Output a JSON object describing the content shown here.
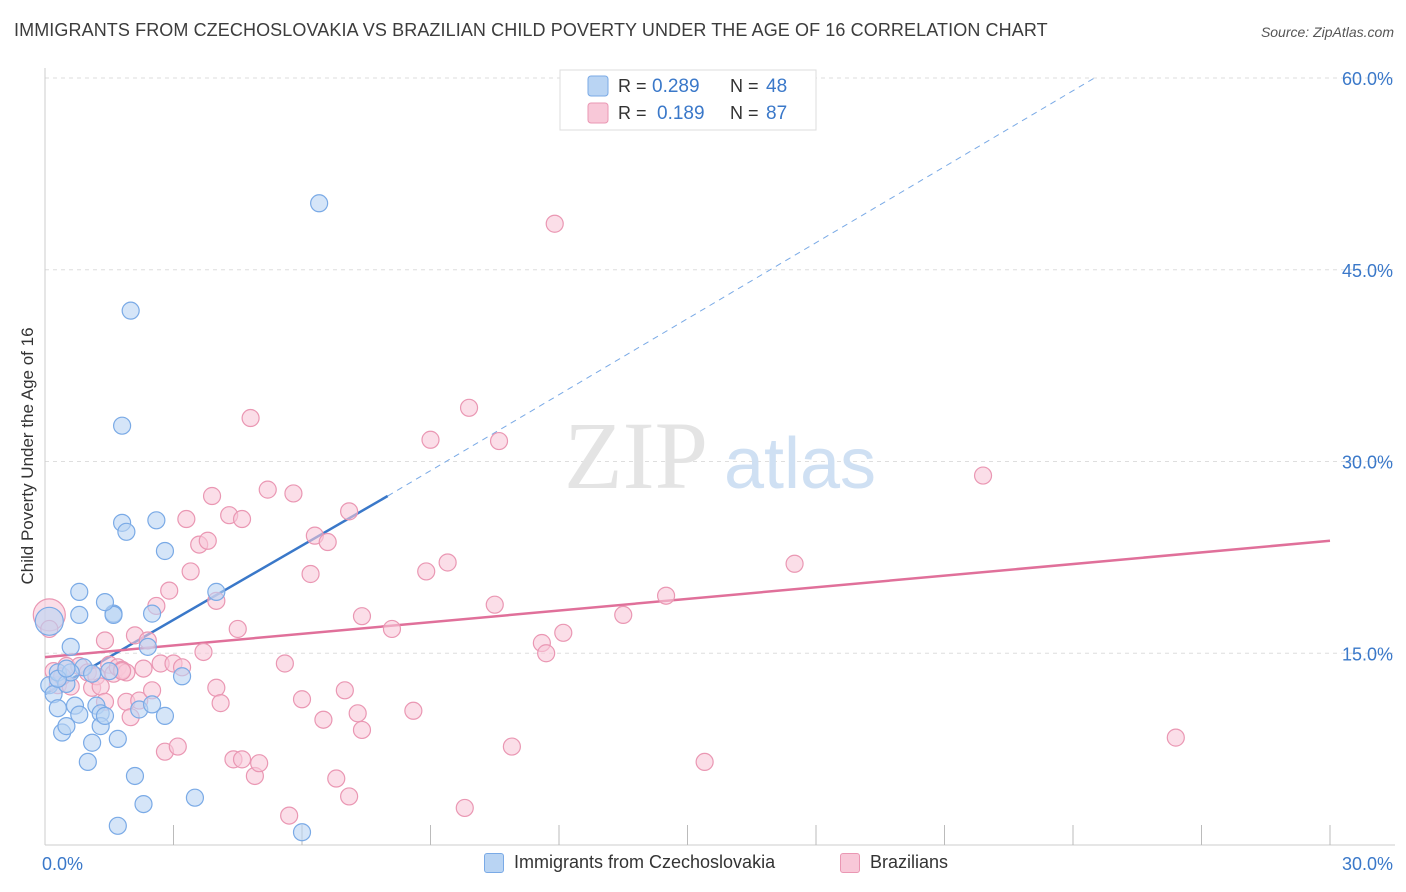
{
  "chart_data": {
    "type": "scatter",
    "title": "IMMIGRANTS FROM CZECHOSLOVAKIA VS BRAZILIAN CHILD POVERTY UNDER THE AGE OF 16 CORRELATION CHART",
    "source": "Source: ZipAtlas.com",
    "ylabel": "Child Poverty Under the Age of 16",
    "xlabel": "",
    "xlim": [
      0,
      30
    ],
    "ylim": [
      0,
      60
    ],
    "x_tick_labels": [
      "0.0%",
      "30.0%"
    ],
    "y_ticks": [
      15,
      30,
      45,
      60
    ],
    "y_tick_labels": [
      "15.0%",
      "30.0%",
      "45.0%",
      "60.0%"
    ],
    "watermark": {
      "zip": "ZIP",
      "atlas": "atlas"
    },
    "legend": {
      "series1": {
        "r_label": "R =",
        "r_value": "0.289",
        "n_label": "N =",
        "n_value": "48"
      },
      "series2": {
        "r_label": "R =",
        "r_value": "0.189",
        "n_label": "N =",
        "n_value": "87"
      }
    },
    "colors": {
      "blue_fill": "#b9d4f3",
      "blue_stroke": "#7aaae6",
      "blue_line": "#3a78c9",
      "pink_fill": "#f8c8d8",
      "pink_stroke": "#ea97b3",
      "pink_line": "#e0709a",
      "value_text": "#3a78c9"
    },
    "series": [
      {
        "name": "Immigrants from Czechoslovakia",
        "color": "#b9d4f3",
        "trend": {
          "x": [
            0.0,
            8.0
          ],
          "y": [
            11.8,
            27.3
          ],
          "dashed_to": [
            24.5,
            60.0
          ]
        },
        "points": [
          [
            0.1,
            17.5
          ],
          [
            0.1,
            12.5
          ],
          [
            0.2,
            11.8
          ],
          [
            0.3,
            10.7
          ],
          [
            0.4,
            8.8
          ],
          [
            0.5,
            9.3
          ],
          [
            0.3,
            13.5
          ],
          [
            0.5,
            12.6
          ],
          [
            0.6,
            15.5
          ],
          [
            0.7,
            10.9
          ],
          [
            0.8,
            10.2
          ],
          [
            0.8,
            18.0
          ],
          [
            0.9,
            13.9
          ],
          [
            1.0,
            6.5
          ],
          [
            1.1,
            8.0
          ],
          [
            1.2,
            10.9
          ],
          [
            1.3,
            10.3
          ],
          [
            1.3,
            9.3
          ],
          [
            1.4,
            10.1
          ],
          [
            1.5,
            13.6
          ],
          [
            1.6,
            18.1
          ],
          [
            1.6,
            18.0
          ],
          [
            1.7,
            8.3
          ],
          [
            1.7,
            1.5
          ],
          [
            1.4,
            19.0
          ],
          [
            1.8,
            32.8
          ],
          [
            1.8,
            25.2
          ],
          [
            1.9,
            24.5
          ],
          [
            2.0,
            41.8
          ],
          [
            2.1,
            5.4
          ],
          [
            2.2,
            10.6
          ],
          [
            2.3,
            3.2
          ],
          [
            2.4,
            15.5
          ],
          [
            2.5,
            18.1
          ],
          [
            2.6,
            25.4
          ],
          [
            2.5,
            11.0
          ],
          [
            2.8,
            23.0
          ],
          [
            2.8,
            10.1
          ],
          [
            3.2,
            13.2
          ],
          [
            3.5,
            3.7
          ],
          [
            4.0,
            19.8
          ],
          [
            6.0,
            1.0
          ],
          [
            6.4,
            50.2
          ],
          [
            0.8,
            19.8
          ],
          [
            0.6,
            13.5
          ],
          [
            1.1,
            13.4
          ],
          [
            0.3,
            13.0
          ],
          [
            0.5,
            13.8
          ]
        ]
      },
      {
        "name": "Brazilians",
        "color": "#f8c8d8",
        "trend": {
          "x": [
            0.0,
            30.0
          ],
          "y": [
            14.7,
            23.8
          ]
        },
        "points": [
          [
            0.1,
            18.0
          ],
          [
            0.2,
            13.6
          ],
          [
            0.3,
            12.5
          ],
          [
            0.5,
            14.0
          ],
          [
            0.6,
            12.4
          ],
          [
            0.8,
            14.0
          ],
          [
            1.0,
            13.5
          ],
          [
            1.1,
            12.3
          ],
          [
            1.2,
            13.2
          ],
          [
            1.3,
            12.4
          ],
          [
            1.4,
            11.2
          ],
          [
            1.4,
            16.0
          ],
          [
            1.5,
            14.1
          ],
          [
            1.6,
            13.4
          ],
          [
            1.7,
            13.9
          ],
          [
            1.8,
            13.7
          ],
          [
            1.9,
            13.5
          ],
          [
            1.9,
            11.2
          ],
          [
            2.0,
            10.0
          ],
          [
            2.1,
            16.4
          ],
          [
            2.2,
            11.3
          ],
          [
            2.3,
            13.8
          ],
          [
            2.4,
            16.0
          ],
          [
            2.5,
            12.1
          ],
          [
            2.6,
            18.7
          ],
          [
            2.7,
            14.2
          ],
          [
            2.8,
            7.3
          ],
          [
            2.9,
            19.9
          ],
          [
            3.0,
            14.2
          ],
          [
            3.1,
            7.7
          ],
          [
            3.2,
            13.9
          ],
          [
            3.3,
            25.5
          ],
          [
            3.4,
            21.4
          ],
          [
            3.6,
            23.5
          ],
          [
            3.7,
            15.1
          ],
          [
            3.8,
            23.8
          ],
          [
            3.9,
            27.3
          ],
          [
            4.0,
            19.1
          ],
          [
            4.0,
            12.3
          ],
          [
            4.1,
            11.1
          ],
          [
            4.3,
            25.8
          ],
          [
            4.4,
            6.7
          ],
          [
            4.5,
            16.9
          ],
          [
            4.6,
            6.7
          ],
          [
            4.6,
            25.5
          ],
          [
            4.8,
            33.4
          ],
          [
            4.9,
            5.4
          ],
          [
            5.0,
            6.4
          ],
          [
            5.2,
            27.8
          ],
          [
            5.6,
            14.2
          ],
          [
            5.7,
            2.3
          ],
          [
            5.8,
            27.5
          ],
          [
            6.0,
            11.4
          ],
          [
            6.2,
            21.2
          ],
          [
            6.3,
            24.2
          ],
          [
            6.5,
            9.8
          ],
          [
            6.6,
            23.7
          ],
          [
            6.8,
            5.2
          ],
          [
            7.0,
            12.1
          ],
          [
            7.1,
            3.8
          ],
          [
            7.3,
            10.3
          ],
          [
            7.4,
            9.0
          ],
          [
            7.4,
            17.9
          ],
          [
            7.1,
            26.1
          ],
          [
            8.1,
            16.9
          ],
          [
            8.6,
            10.5
          ],
          [
            8.9,
            21.4
          ],
          [
            9.0,
            31.7
          ],
          [
            9.4,
            22.1
          ],
          [
            9.8,
            2.9
          ],
          [
            9.9,
            34.2
          ],
          [
            10.5,
            18.8
          ],
          [
            10.6,
            31.6
          ],
          [
            10.9,
            7.7
          ],
          [
            11.6,
            15.8
          ],
          [
            11.7,
            15.0
          ],
          [
            11.9,
            48.6
          ],
          [
            12.1,
            16.6
          ],
          [
            13.5,
            18.0
          ],
          [
            14.5,
            19.5
          ],
          [
            15.4,
            6.5
          ],
          [
            17.5,
            22.0
          ],
          [
            21.9,
            28.9
          ],
          [
            26.4,
            8.4
          ],
          [
            0.1,
            16.9
          ],
          [
            0.4,
            13.2
          ],
          [
            1.8,
            13.6
          ]
        ]
      }
    ]
  }
}
